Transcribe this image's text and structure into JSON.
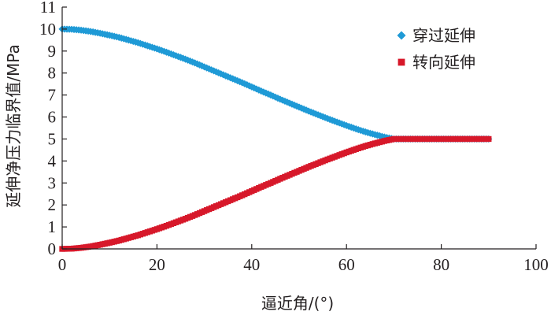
{
  "chart_data": {
    "type": "scatter",
    "title": "",
    "xlabel": "逼近角/(°)",
    "ylabel": "延伸净压力临界值/MPa",
    "xlim": [
      0,
      100
    ],
    "ylim": [
      0,
      11
    ],
    "xticks": [
      0,
      20,
      40,
      60,
      80,
      100
    ],
    "yticks": [
      0,
      1,
      2,
      3,
      4,
      5,
      6,
      7,
      8,
      9,
      10,
      11
    ],
    "grid": false,
    "legend": "top-right",
    "series": [
      {
        "name": "穿过延伸",
        "color": "#1f9ad6",
        "marker": "diamond",
        "x": [
          0,
          2,
          4,
          6,
          8,
          10,
          12,
          14,
          16,
          18,
          20,
          22,
          24,
          26,
          28,
          30,
          32,
          34,
          36,
          38,
          40,
          42,
          44,
          46,
          48,
          50,
          52,
          54,
          56,
          58,
          60,
          62,
          64,
          66,
          68,
          70,
          72,
          74,
          76,
          78,
          80,
          82,
          84,
          86,
          88,
          90
        ],
        "y": [
          10.0,
          9.99,
          9.95,
          9.89,
          9.81,
          9.72,
          9.62,
          9.5,
          9.38,
          9.24,
          9.1,
          8.95,
          8.79,
          8.63,
          8.46,
          8.28,
          8.1,
          7.92,
          7.74,
          7.56,
          7.37,
          7.18,
          7.0,
          6.81,
          6.63,
          6.45,
          6.27,
          6.1,
          5.93,
          5.77,
          5.61,
          5.46,
          5.32,
          5.2,
          5.09,
          5.0,
          5.0,
          5.0,
          5.0,
          5.0,
          5.0,
          5.0,
          5.0,
          5.0,
          5.0,
          5.0
        ]
      },
      {
        "name": "转向延伸",
        "color": "#d7182a",
        "marker": "square",
        "x": [
          0,
          2,
          4,
          6,
          8,
          10,
          12,
          14,
          16,
          18,
          20,
          22,
          24,
          26,
          28,
          30,
          32,
          34,
          36,
          38,
          40,
          42,
          44,
          46,
          48,
          50,
          52,
          54,
          56,
          58,
          60,
          62,
          64,
          66,
          68,
          70,
          72,
          74,
          76,
          78,
          80,
          82,
          84,
          86,
          88,
          90
        ],
        "y": [
          0.0,
          0.01,
          0.05,
          0.11,
          0.19,
          0.28,
          0.38,
          0.5,
          0.62,
          0.76,
          0.9,
          1.05,
          1.21,
          1.37,
          1.54,
          1.72,
          1.9,
          2.08,
          2.26,
          2.44,
          2.63,
          2.82,
          3.0,
          3.19,
          3.37,
          3.55,
          3.73,
          3.9,
          4.07,
          4.23,
          4.39,
          4.54,
          4.68,
          4.8,
          4.91,
          5.0,
          5.0,
          5.0,
          5.0,
          5.0,
          5.0,
          5.0,
          5.0,
          5.0,
          5.0,
          5.0
        ]
      }
    ]
  }
}
